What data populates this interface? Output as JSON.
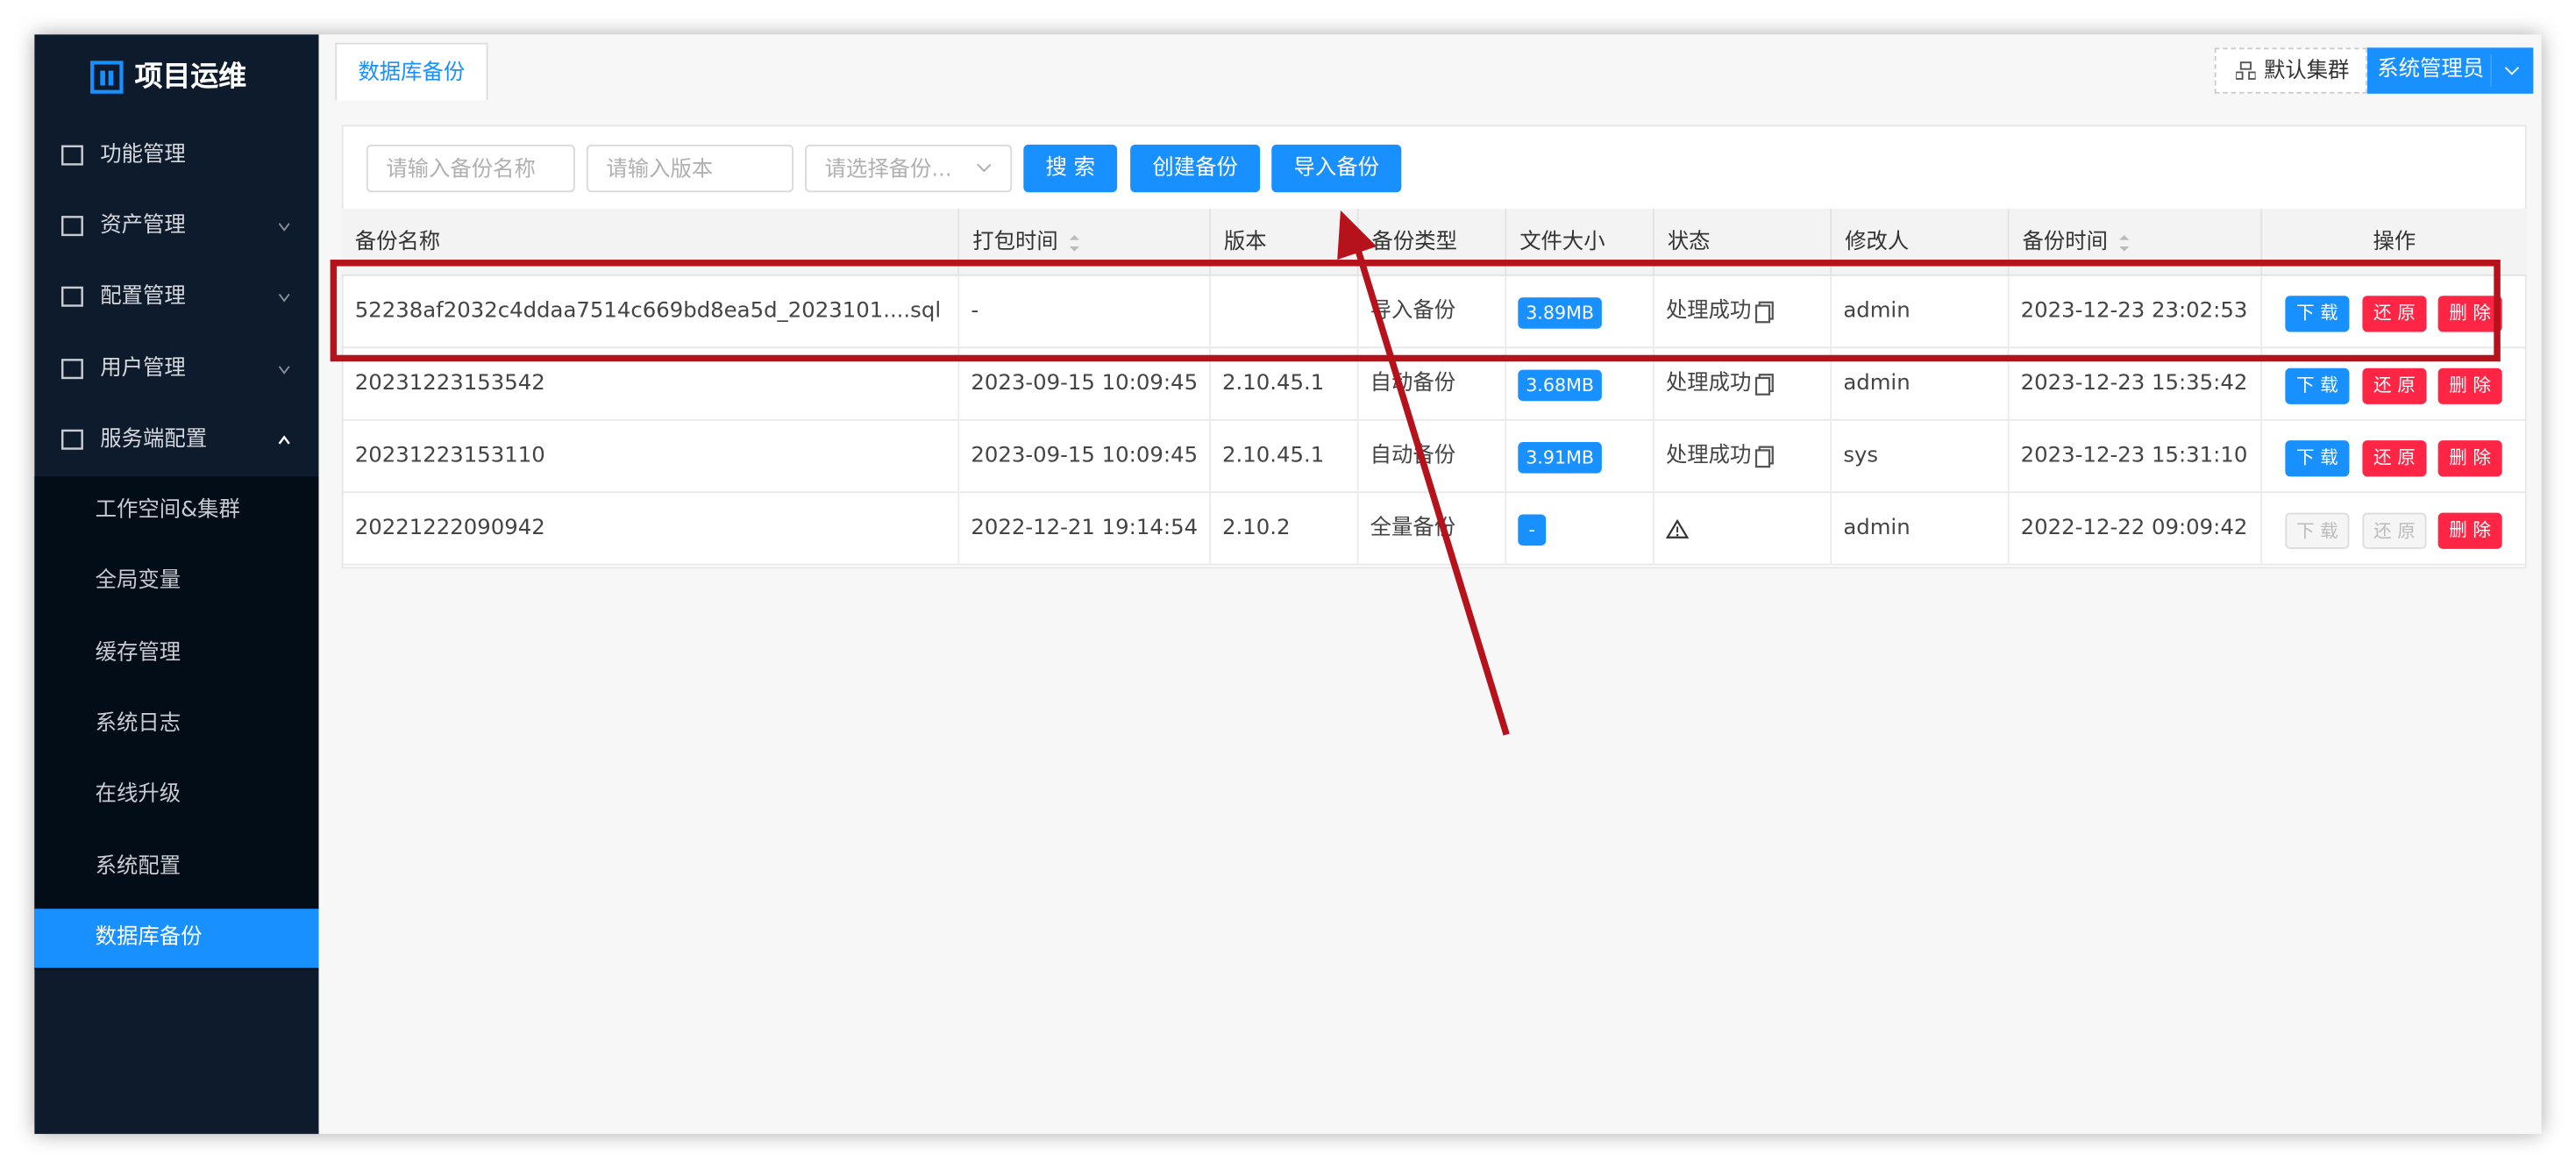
{
  "sidebar": {
    "logo": "项目运维",
    "menu": [
      "功能管理",
      "资产管理",
      "配置管理",
      "用户管理",
      "服务端配置"
    ],
    "submenu": [
      "工作空间&集群",
      "全局变量",
      "缓存管理",
      "系统日志",
      "在线升级",
      "系统配置",
      "数据库备份"
    ]
  },
  "tab": "数据库备份",
  "header": {
    "cluster": "默认集群",
    "user": "系统管理员"
  },
  "toolbar": {
    "inputs": [
      "请输入备份名称",
      "请输入版本",
      "请选择备份..."
    ],
    "buttons": [
      "搜 索",
      "创建备份",
      "导入备份"
    ]
  },
  "table": {
    "columns": [
      "备份名称",
      "打包时间",
      "版本",
      "备份类型",
      "文件大小",
      "状态",
      "修改人",
      "备份时间",
      "操作"
    ],
    "rows": [
      {
        "name": "52238af2032c4ddaa7514c669bd8ea5d_2023101....sql",
        "pack_time": "-",
        "type": "导入备份",
        "size": "3.89MB",
        "status": "处理成功",
        "modifier": "admin",
        "backup_time": "2023-12-23 23:02:53"
      },
      {
        "name": "20231223153542",
        "pack_time": "2023-09-15 10:09:45",
        "version": "2.10.45.1",
        "type": "自动备份",
        "size": "3.68MB",
        "status": "处理成功",
        "modifier": "admin",
        "backup_time": "2023-12-23 15:35:42"
      },
      {
        "name": "20231223153110",
        "pack_time": "2023-09-15 10:09:45",
        "version": "2.10.45.1",
        "type": "自动备份",
        "size": "3.91MB",
        "status": "处理成功",
        "modifier": "sys",
        "backup_time": "2023-12-23 15:31:10"
      },
      {
        "name": "20221222090942",
        "pack_time": "2022-12-21 19:14:54",
        "version": "2.10.2",
        "type": "全量备份",
        "size": "-",
        "modifier": "admin",
        "backup_time": "2022-12-22 09:09:42",
        "disabled": true
      }
    ],
    "actions": [
      "下 载",
      "还 原",
      "删 除"
    ]
  }
}
